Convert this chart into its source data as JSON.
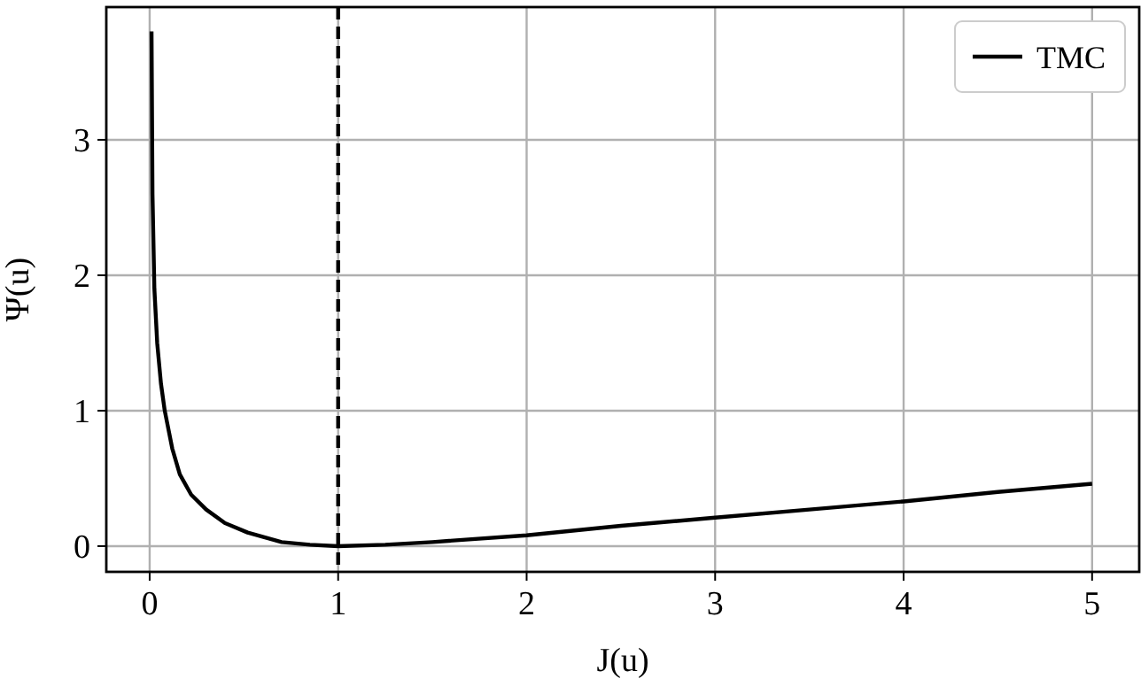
{
  "chart_data": {
    "type": "line",
    "xlabel": "J(u)",
    "ylabel": "Ψ(u)",
    "xlim": [
      -0.23,
      5.25
    ],
    "ylim": [
      -0.19,
      3.98
    ],
    "xticks": [
      0,
      1,
      2,
      3,
      4,
      5
    ],
    "yticks": [
      0,
      1,
      2,
      3
    ],
    "grid": true,
    "legend": "top right",
    "line_style": "solid",
    "ref_lines": [
      {
        "axis": "x",
        "value": 1,
        "color": "#000000",
        "line_style": "dashed"
      }
    ],
    "series": [
      {
        "name": "TMC",
        "color": "#000000",
        "x": [
          0.01,
          0.015,
          0.025,
          0.04,
          0.06,
          0.08,
          0.12,
          0.16,
          0.22,
          0.3,
          0.4,
          0.52,
          0.7,
          0.85,
          1,
          1.25,
          1.5,
          2,
          2.5,
          3,
          3.5,
          4,
          4.5,
          5
        ],
        "values": [
          3.8,
          2.6,
          1.9,
          1.5,
          1.2,
          1.0,
          0.72,
          0.53,
          0.38,
          0.27,
          0.17,
          0.1,
          0.03,
          0.01,
          0,
          0.01,
          0.03,
          0.08,
          0.15,
          0.21,
          0.27,
          0.33,
          0.4,
          0.46
        ]
      }
    ]
  }
}
